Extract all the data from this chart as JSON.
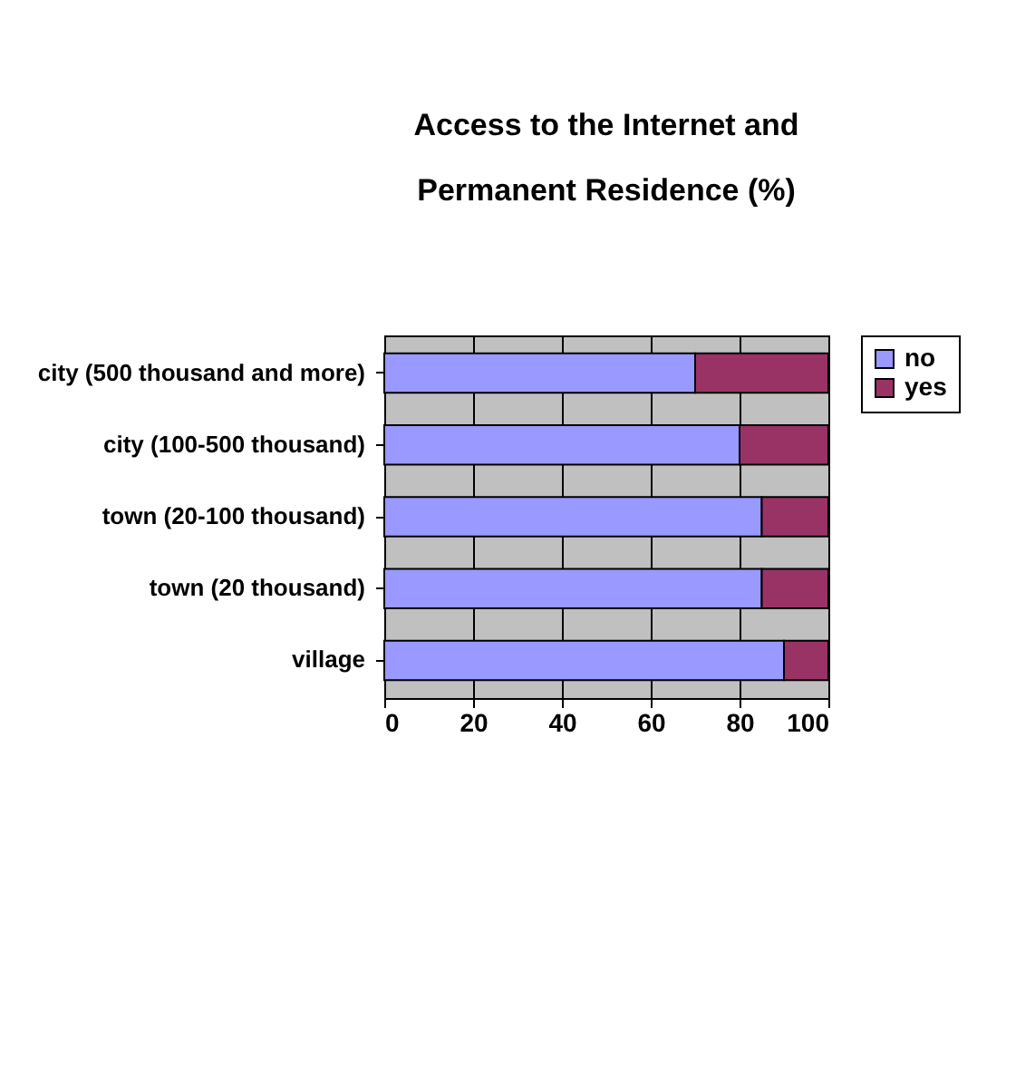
{
  "chart_data": {
    "type": "bar",
    "orientation": "horizontal",
    "stacked": true,
    "title": "Access to the Internet and Permanent Residence (%)",
    "categories": [
      "city (500 thousand and more)",
      "city (100-500 thousand)",
      "town (20-100 thousand)",
      "town (20 thousand)",
      "village"
    ],
    "series": [
      {
        "name": "no",
        "color": "#9999ff",
        "values": [
          70,
          80,
          85,
          85,
          90
        ]
      },
      {
        "name": "yes",
        "color": "#993366",
        "values": [
          30,
          20,
          15,
          15,
          10
        ]
      }
    ],
    "xlim": [
      0,
      100
    ],
    "xticks": [
      0,
      20,
      40,
      60,
      80,
      100
    ],
    "grid": "x",
    "legend": "right"
  }
}
